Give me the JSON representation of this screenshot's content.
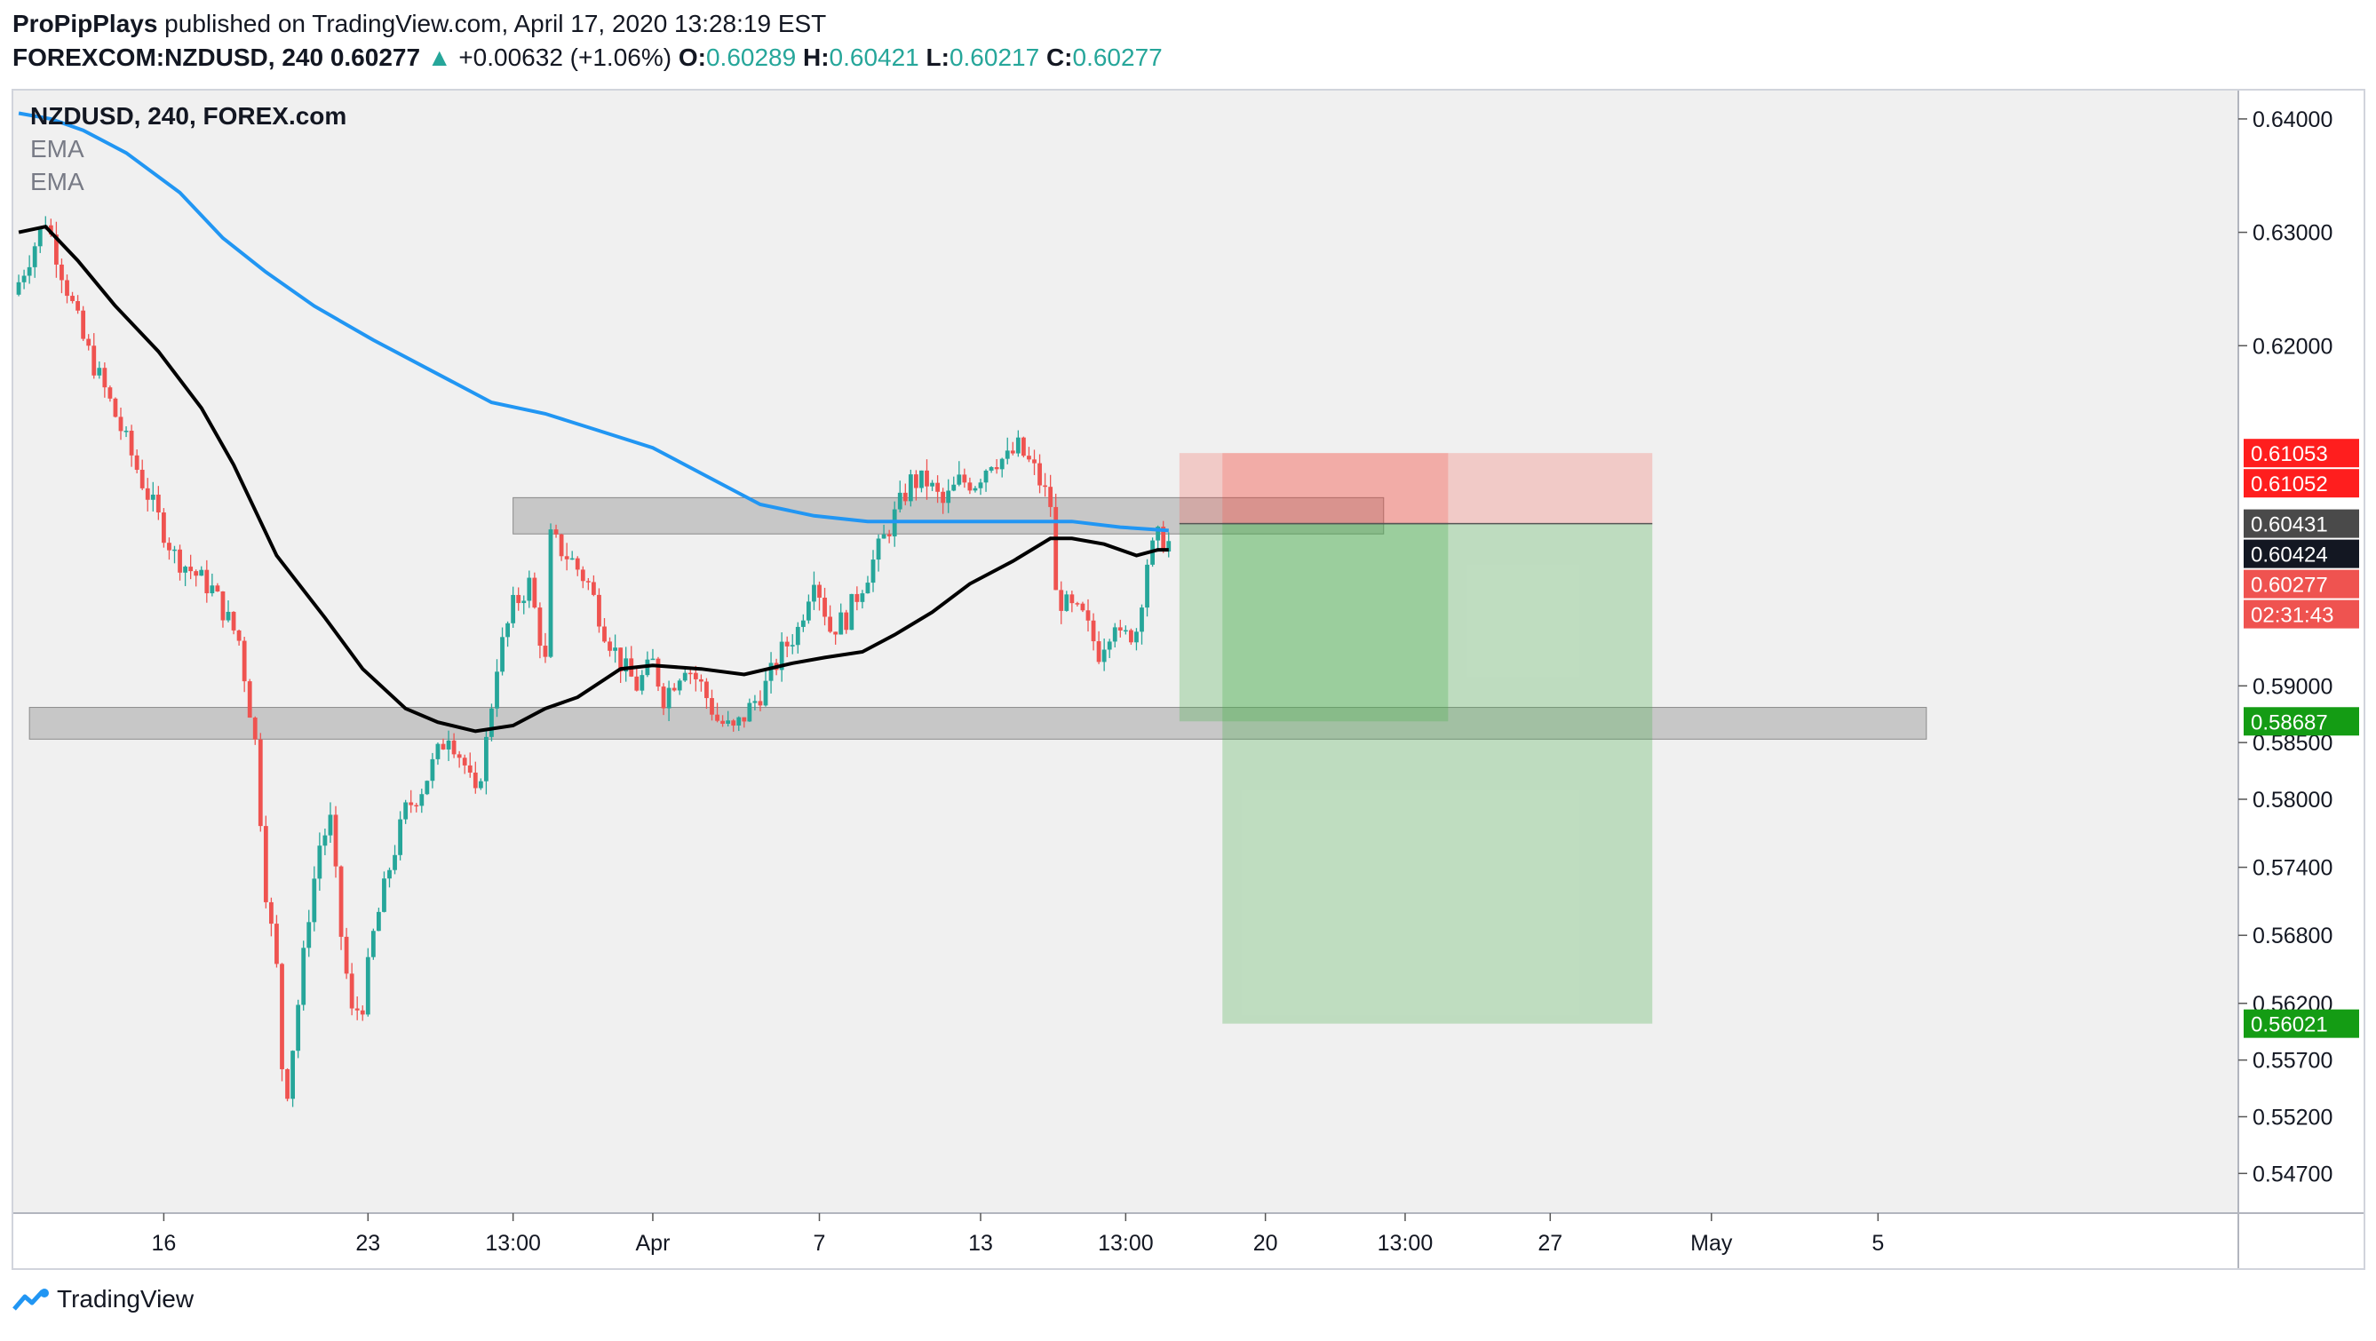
{
  "header": {
    "publisher": "ProPipPlays",
    "published_text": " published on TradingView.com, April 17, 2020 13:28:19 EST",
    "symbol": "FOREXCOM:NZDUSD, 240",
    "last": "0.60277",
    "arrow": "▲",
    "change": "+0.00632 (+1.06%)",
    "o_label": "O:",
    "o_value": "0.60289",
    "h_label": "H:",
    "h_value": "0.60421",
    "l_label": "L:",
    "l_value": "0.60217",
    "c_label": "C:",
    "c_value": "0.60277"
  },
  "legend": {
    "symbol": "NZDUSD, 240, FOREX.com",
    "ema1": "EMA",
    "ema2": "EMA"
  },
  "footer": {
    "brand": "TradingView"
  },
  "colors": {
    "up": "#26a69a",
    "down": "#ef5350",
    "ema_fast": "#000000",
    "ema_slow": "#2196f3",
    "zone": "#9e9e9e",
    "stop": "#f44336",
    "target": "#4caf50",
    "bg": "#f0f0f0"
  },
  "chart_data": {
    "type": "candlestick",
    "title": "NZDUSD, 240, FOREX.com",
    "y_range": [
      0.5435,
      0.6425
    ],
    "y_ticks": [
      "0.64000",
      "0.63000",
      "0.62000",
      "0.59000",
      "0.58500",
      "0.58000",
      "0.57400",
      "0.56800",
      "0.56200",
      "0.55700",
      "0.55200",
      "0.54700"
    ],
    "y_tick_values": [
      0.64,
      0.63,
      0.62,
      0.59,
      0.585,
      0.58,
      0.574,
      0.568,
      0.562,
      0.557,
      0.552,
      0.547
    ],
    "x_labels": [
      {
        "label": "16",
        "i": 27
      },
      {
        "label": "23",
        "i": 65
      },
      {
        "label": "13:00",
        "i": 92
      },
      {
        "label": "Apr",
        "i": 118
      },
      {
        "label": "7",
        "i": 149
      },
      {
        "label": "13",
        "i": 179
      },
      {
        "label": "13:00",
        "i": 206
      },
      {
        "label": "20",
        "i": 232
      },
      {
        "label": "13:00",
        "i": 258
      },
      {
        "label": "27",
        "i": 285
      },
      {
        "label": "May",
        "i": 315
      },
      {
        "label": "5",
        "i": 346
      }
    ],
    "price_path": [
      [
        0,
        0.6245
      ],
      [
        6,
        0.6312
      ],
      [
        13,
        0.6205
      ],
      [
        18,
        0.615
      ],
      [
        24,
        0.608
      ],
      [
        30,
        0.6015
      ],
      [
        37,
        0.5985
      ],
      [
        42,
        0.594
      ],
      [
        45,
        0.585
      ],
      [
        47,
        0.572
      ],
      [
        49,
        0.565
      ],
      [
        50,
        0.5565
      ],
      [
        51,
        0.5545
      ],
      [
        53,
        0.562
      ],
      [
        55,
        0.57
      ],
      [
        57,
        0.576
      ],
      [
        59,
        0.578
      ],
      [
        61,
        0.568
      ],
      [
        63,
        0.561
      ],
      [
        65,
        0.562
      ],
      [
        67,
        0.568
      ],
      [
        70,
        0.574
      ],
      [
        73,
        0.579
      ],
      [
        76,
        0.581
      ],
      [
        79,
        0.584
      ],
      [
        81,
        0.586
      ],
      [
        84,
        0.583
      ],
      [
        86,
        0.58
      ],
      [
        88,
        0.585
      ],
      [
        90,
        0.592
      ],
      [
        93,
        0.597
      ],
      [
        96,
        0.599
      ],
      [
        99,
        0.592
      ],
      [
        100,
        0.603
      ],
      [
        104,
        0.601
      ],
      [
        107,
        0.599
      ],
      [
        110,
        0.595
      ],
      [
        113,
        0.592
      ],
      [
        116,
        0.59
      ],
      [
        119,
        0.592
      ],
      [
        121,
        0.589
      ],
      [
        125,
        0.592
      ],
      [
        128,
        0.59
      ],
      [
        131,
        0.587
      ],
      [
        134,
        0.586
      ],
      [
        137,
        0.588
      ],
      [
        140,
        0.59
      ],
      [
        143,
        0.593
      ],
      [
        146,
        0.595
      ],
      [
        149,
        0.6
      ],
      [
        152,
        0.595
      ],
      [
        155,
        0.596
      ],
      [
        158,
        0.599
      ],
      [
        161,
        0.602
      ],
      [
        164,
        0.605
      ],
      [
        167,
        0.608
      ],
      [
        170,
        0.608
      ],
      [
        173,
        0.606
      ],
      [
        176,
        0.608
      ],
      [
        179,
        0.608
      ],
      [
        182,
        0.61
      ],
      [
        185,
        0.61
      ],
      [
        187,
        0.611
      ],
      [
        190,
        0.609
      ],
      [
        193,
        0.606
      ],
      [
        194,
        0.598
      ],
      [
        196,
        0.597
      ],
      [
        199,
        0.596
      ],
      [
        202,
        0.593
      ],
      [
        205,
        0.596
      ],
      [
        206,
        0.594
      ],
      [
        209,
        0.595
      ],
      [
        211,
        0.601
      ],
      [
        213,
        0.603
      ],
      [
        214,
        0.6028
      ]
    ],
    "ema_fast_path": [
      [
        0,
        0.63
      ],
      [
        5,
        0.6305
      ],
      [
        11,
        0.6275
      ],
      [
        18,
        0.6235
      ],
      [
        26,
        0.6195
      ],
      [
        34,
        0.6145
      ],
      [
        40,
        0.6095
      ],
      [
        48,
        0.6015
      ],
      [
        57,
        0.596
      ],
      [
        64,
        0.5915
      ],
      [
        72,
        0.588
      ],
      [
        78,
        0.5868
      ],
      [
        85,
        0.586
      ],
      [
        92,
        0.5865
      ],
      [
        98,
        0.588
      ],
      [
        104,
        0.589
      ],
      [
        112,
        0.5915
      ],
      [
        118,
        0.5918
      ],
      [
        127,
        0.5915
      ],
      [
        135,
        0.591
      ],
      [
        144,
        0.592
      ],
      [
        150,
        0.5925
      ],
      [
        157,
        0.593
      ],
      [
        163,
        0.5945
      ],
      [
        170,
        0.5965
      ],
      [
        177,
        0.599
      ],
      [
        185,
        0.601
      ],
      [
        192,
        0.603
      ],
      [
        196,
        0.603
      ],
      [
        202,
        0.6025
      ],
      [
        208,
        0.6015
      ],
      [
        212,
        0.602
      ],
      [
        214,
        0.602
      ]
    ],
    "ema_slow_path": [
      [
        0,
        0.6405
      ],
      [
        6,
        0.64
      ],
      [
        12,
        0.639
      ],
      [
        20,
        0.637
      ],
      [
        30,
        0.6335
      ],
      [
        38,
        0.6295
      ],
      [
        46,
        0.6265
      ],
      [
        55,
        0.6235
      ],
      [
        66,
        0.6205
      ],
      [
        76,
        0.618
      ],
      [
        88,
        0.615
      ],
      [
        98,
        0.614
      ],
      [
        108,
        0.6125
      ],
      [
        118,
        0.611
      ],
      [
        128,
        0.6085
      ],
      [
        138,
        0.606
      ],
      [
        148,
        0.605
      ],
      [
        158,
        0.6045
      ],
      [
        168,
        0.6045
      ],
      [
        178,
        0.6045
      ],
      [
        188,
        0.6045
      ],
      [
        196,
        0.6045
      ],
      [
        205,
        0.604
      ],
      [
        214,
        0.6037
      ]
    ],
    "zones": [
      {
        "from_i": 92,
        "to_i": 254,
        "top": 0.6066,
        "bottom": 0.6034
      },
      {
        "from_i": 2,
        "to_i": 355,
        "top": 0.5881,
        "bottom": 0.5853
      }
    ],
    "positions": [
      {
        "from_i": 216,
        "to_i": 266,
        "entry": 0.60431,
        "stop": 0.61053,
        "target": 0.58687
      },
      {
        "from_i": 224,
        "to_i": 304,
        "entry": 0.60431,
        "stop": 0.61053,
        "target": 0.56021
      }
    ],
    "price_labels": [
      {
        "text": "0.61053",
        "value": 0.61053,
        "kind": "stop"
      },
      {
        "text": "0.61052",
        "value": 0.61052,
        "kind": "stop"
      },
      {
        "text": "0.60431",
        "value": 0.60431,
        "kind": "entry"
      },
      {
        "text": "0.60424",
        "value": 0.60424,
        "kind": "ema"
      },
      {
        "text": "0.60277",
        "value": 0.60277,
        "kind": "last"
      },
      {
        "text": "02:31:43",
        "value": 0.5996,
        "kind": "countdown"
      },
      {
        "text": "0.58687",
        "value": 0.58687,
        "kind": "target"
      },
      {
        "text": "0.56021",
        "value": 0.56021,
        "kind": "target"
      }
    ]
  }
}
